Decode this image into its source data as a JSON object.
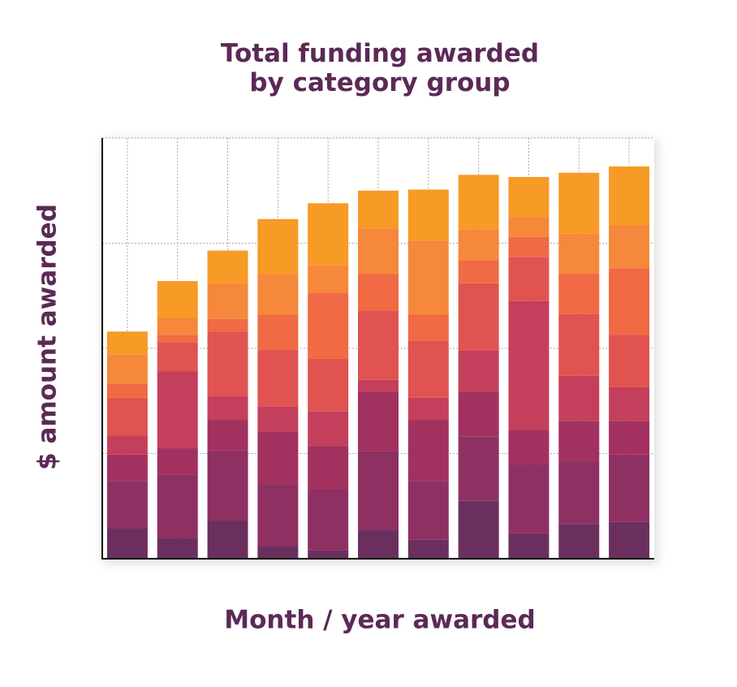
{
  "chart_data": {
    "type": "stacked_bar",
    "title": "Total funding awarded by category group",
    "x_label": "Month / year awarded",
    "y_label": "$ amount awarded",
    "categories": [
      null,
      null,
      null,
      null,
      null,
      null,
      null,
      null,
      null,
      null,
      null
    ],
    "series": [
      {
        "color": "#6b2f5e",
        "values": [
          29,
          20,
          37,
          12,
          8,
          27,
          18,
          55,
          24,
          33,
          35
        ]
      },
      {
        "color": "#8f3063",
        "values": [
          45,
          60,
          66,
          59,
          58,
          75,
          56,
          61,
          66,
          60,
          64
        ]
      },
      {
        "color": "#a3315f",
        "values": [
          25,
          25,
          29,
          50,
          41,
          57,
          58,
          43,
          32,
          38,
          32
        ]
      },
      {
        "color": "#c43f5b",
        "values": [
          18,
          73,
          23,
          24,
          33,
          11,
          21,
          39,
          123,
          43,
          32
        ]
      },
      {
        "color": "#e05350",
        "values": [
          36,
          28,
          61,
          54,
          50,
          66,
          54,
          64,
          42,
          59,
          50
        ]
      },
      {
        "color": "#f06a43",
        "values": [
          13,
          7,
          12,
          33,
          63,
          35,
          25,
          22,
          19,
          38,
          63
        ]
      },
      {
        "color": "#f5883a",
        "values": [
          28,
          16,
          34,
          39,
          26,
          43,
          70,
          29,
          19,
          38,
          41
        ]
      },
      {
        "color": "#f79a26",
        "values": [
          22,
          35,
          31,
          52,
          59,
          36,
          49,
          52,
          38,
          58,
          56
        ]
      }
    ],
    "ylim": [
      0,
      400
    ],
    "yticks": [
      0,
      100,
      200,
      300,
      400
    ],
    "tick_labels": false,
    "grid": true
  }
}
